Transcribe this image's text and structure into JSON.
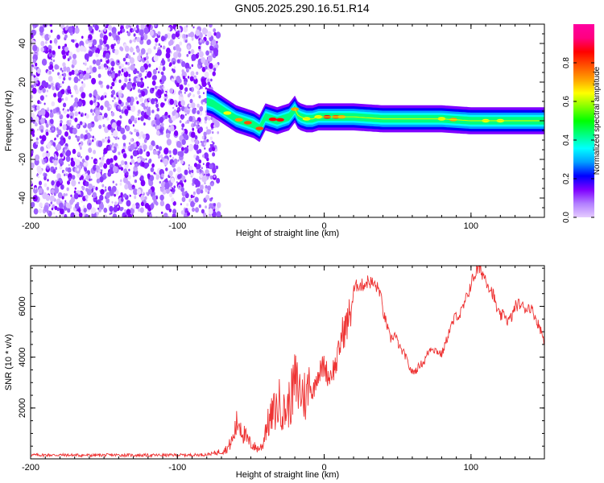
{
  "figure_title": "GN05.2025.290.16.51.R14",
  "chart_data": [
    {
      "type": "heatmap",
      "title": "GN05.2025.290.16.51.R14",
      "xlabel": "Height of straight line (km)",
      "ylabel": "Frequency (Hz)",
      "xlim": [
        -200,
        150
      ],
      "ylim": [
        -50,
        50
      ],
      "x_ticks": [
        -200,
        -100,
        0,
        100
      ],
      "y_ticks": [
        -40,
        -20,
        0,
        20,
        40
      ],
      "colorbar": {
        "label": "Normalized spectral amplitude",
        "range": [
          0,
          1
        ],
        "ticks": [
          0.0,
          0.2,
          0.4,
          0.6,
          0.8
        ],
        "colors": [
          "#e6ccff",
          "#b27fff",
          "#7f00ff",
          "#0000ff",
          "#00a0ff",
          "#00ffff",
          "#00ff80",
          "#00ff00",
          "#80ff00",
          "#ffff00",
          "#ffa000",
          "#ff5000",
          "#ff0000",
          "#ff0080",
          "#ff00a0"
        ]
      },
      "noise_region_x": [
        -200,
        -75
      ],
      "ridge": {
        "x": [
          -80,
          -76,
          -72,
          -68,
          -64,
          -60,
          -56,
          -52,
          -48,
          -44,
          -40,
          -36,
          -32,
          -28,
          -24,
          -20,
          -18,
          -16,
          -12,
          -8,
          -4,
          0,
          10,
          20,
          40,
          60,
          80,
          100,
          120,
          150
        ],
        "y": [
          10,
          9,
          7,
          5,
          3,
          1,
          0,
          -1,
          -2,
          -4,
          2,
          1,
          0,
          1,
          2,
          6,
          3,
          2,
          1,
          1,
          2,
          2,
          2,
          2,
          1,
          1,
          1,
          0,
          0,
          0
        ]
      }
    },
    {
      "type": "line",
      "xlabel": "Height of straight line (km)",
      "ylabel": "SNR (10 * v/v)",
      "xlim": [
        -200,
        150
      ],
      "ylim": [
        0,
        7600
      ],
      "x_ticks": [
        -200,
        -100,
        0,
        100
      ],
      "y_ticks": [
        2000,
        4000,
        6000
      ],
      "series": [
        {
          "name": "SNR",
          "color": "#ee3333",
          "x": [
            -200,
            -180,
            -160,
            -140,
            -120,
            -100,
            -90,
            -80,
            -75,
            -70,
            -66,
            -62,
            -60,
            -58,
            -55,
            -52,
            -50,
            -47,
            -45,
            -42,
            -40,
            -37,
            -35,
            -32,
            -30,
            -28,
            -25,
            -22,
            -20,
            -18,
            -15,
            -12,
            -10,
            -8,
            -5,
            -2,
            0,
            3,
            5,
            8,
            10,
            12,
            15,
            18,
            20,
            23,
            25,
            28,
            30,
            33,
            35,
            38,
            40,
            43,
            45,
            48,
            50,
            52,
            55,
            58,
            60,
            63,
            65,
            68,
            70,
            73,
            75,
            78,
            80,
            83,
            85,
            88,
            90,
            92,
            95,
            98,
            100,
            103,
            105,
            108,
            110,
            113,
            115,
            118,
            120,
            123,
            125,
            128,
            130,
            133,
            135,
            138,
            140,
            143,
            145,
            148,
            150
          ],
          "y": [
            150,
            150,
            140,
            150,
            140,
            150,
            150,
            170,
            220,
            300,
            400,
            800,
            1300,
            1500,
            1000,
            700,
            600,
            450,
            400,
            500,
            1200,
            1500,
            1800,
            2000,
            2300,
            1800,
            2000,
            2500,
            3000,
            2800,
            2600,
            2400,
            3100,
            2500,
            3300,
            3500,
            3700,
            3200,
            3400,
            3700,
            4200,
            4900,
            5200,
            5800,
            6600,
            6900,
            6800,
            6900,
            7000,
            6900,
            6800,
            6600,
            5800,
            5200,
            4700,
            4900,
            4600,
            4300,
            4100,
            3600,
            3400,
            3500,
            3700,
            3800,
            4100,
            4400,
            4300,
            4200,
            4100,
            4600,
            5000,
            5400,
            5700,
            5600,
            6000,
            6500,
            6900,
            7300,
            7500,
            7300,
            7100,
            6700,
            6500,
            5800,
            5600,
            5700,
            5400,
            5600,
            6000,
            6100,
            6000,
            5900,
            6000,
            5700,
            5400,
            5000,
            4600
          ]
        }
      ]
    }
  ]
}
